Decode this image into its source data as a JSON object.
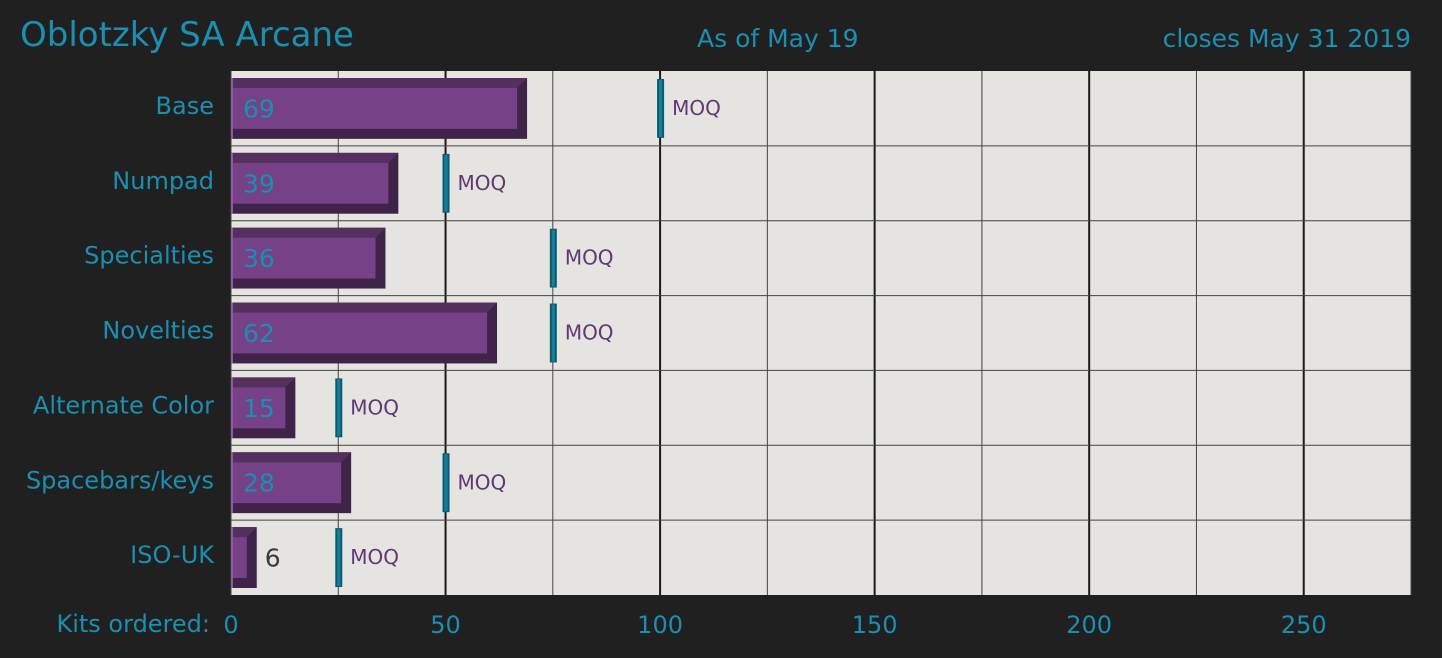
{
  "header": {
    "title": "Oblotzky SA Arcane",
    "as_of": "As of May 19",
    "closes": "closes May 31 2019"
  },
  "colors": {
    "background": "#202020",
    "plot_bg": "#e5e4e0",
    "accent_text": "#1b8fb0",
    "bar_face": "#764187",
    "bar_dark": "#3f2449",
    "bar_light": "#8d59a0",
    "moq_marker": "#13809c",
    "moq_text": "#5e3a70"
  },
  "chart_data": {
    "type": "bar",
    "orientation": "horizontal",
    "categories": [
      "Base",
      "Numpad",
      "Specialties",
      "Novelties",
      "Alternate Color",
      "Spacebars/keys",
      "ISO-UK"
    ],
    "values": [
      69,
      39,
      36,
      62,
      15,
      28,
      6
    ],
    "moq": [
      100,
      50,
      75,
      75,
      25,
      50,
      25
    ],
    "moq_label": "MOQ",
    "xlabel": "Kits ordered:",
    "xlim": [
      0,
      275
    ],
    "xticks": [
      0,
      50,
      100,
      150,
      200,
      250
    ],
    "grid": true
  }
}
